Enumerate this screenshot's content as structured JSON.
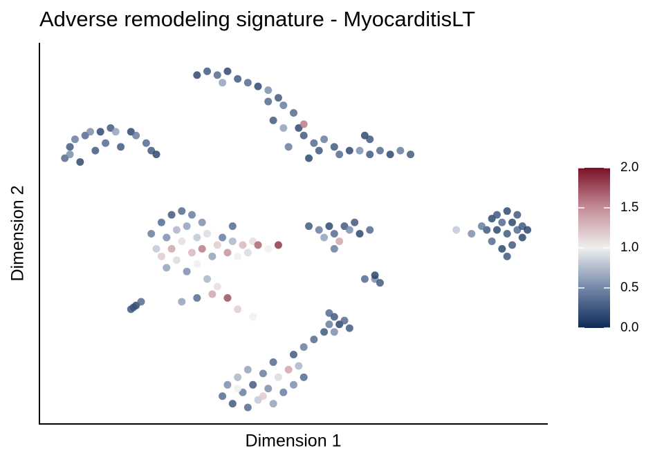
{
  "chart_data": {
    "type": "scatter",
    "title": "Adverse remodeling signature - MyocarditisLT",
    "x_label": "Dimension 1",
    "y_label": "Dimension 2",
    "xlim": [
      0,
      100
    ],
    "ylim": [
      0,
      100
    ],
    "clim": [
      0,
      2
    ],
    "colormap": [
      "#0d2a57",
      "#7488a8",
      "#efefef",
      "#c48d98",
      "#7b1126"
    ],
    "cticks": [
      {
        "value": 0,
        "label": "0.0"
      },
      {
        "value": 0.5,
        "label": "0.5"
      },
      {
        "value": 1,
        "label": "1.0"
      },
      {
        "value": 1.5,
        "label": "1.5"
      },
      {
        "value": 2,
        "label": "2.0"
      }
    ],
    "x": [
      5,
      6,
      7,
      8,
      9,
      10,
      11,
      12,
      13,
      14,
      15,
      16,
      18,
      19,
      21,
      22,
      23,
      6,
      31,
      33,
      35,
      37,
      36,
      39,
      41,
      43,
      45,
      47,
      48,
      45,
      46,
      48,
      50,
      51,
      52,
      49,
      52,
      54,
      55,
      53,
      56,
      58,
      59,
      61,
      63,
      65,
      67,
      69,
      71,
      73,
      64,
      65,
      22,
      23,
      24,
      24,
      25,
      25,
      26,
      26,
      27,
      27,
      28,
      28,
      29,
      29,
      30,
      30,
      31,
      31,
      32,
      32,
      33,
      33,
      34,
      35,
      35,
      36,
      37,
      37,
      38,
      39,
      40,
      41,
      42,
      43,
      45,
      47,
      38,
      34,
      39,
      42,
      28,
      31,
      53,
      55,
      57,
      58,
      60,
      61,
      63,
      65,
      56,
      59,
      62,
      58,
      88,
      89,
      89,
      90,
      90,
      91,
      91,
      92,
      92,
      93,
      93,
      94,
      94,
      95,
      95,
      96,
      92,
      87,
      85,
      82,
      64,
      66,
      67,
      66,
      18,
      19,
      20,
      18.5,
      36,
      37,
      38,
      39,
      40,
      41,
      41,
      42,
      43,
      44,
      45,
      46,
      46,
      47,
      48,
      49,
      50,
      51,
      52,
      50,
      52,
      54,
      56,
      57,
      58,
      59,
      60,
      61,
      58,
      57,
      44,
      39
    ],
    "y": [
      70,
      73,
      75,
      69,
      76,
      77,
      72,
      77,
      74,
      78,
      77,
      73,
      77,
      76,
      74,
      72,
      71,
      71,
      92,
      93,
      92,
      93,
      90,
      91,
      90,
      89,
      88,
      86,
      84,
      85,
      80,
      78,
      82,
      78,
      76,
      73,
      79,
      74,
      72,
      70,
      75,
      73,
      71,
      72,
      72,
      71,
      72,
      71,
      72,
      71,
      76,
      75,
      50,
      46,
      53,
      44,
      49,
      41,
      55,
      46,
      51,
      43,
      56,
      48,
      40,
      52,
      45,
      55,
      49,
      42,
      53,
      46,
      38,
      50,
      44,
      47,
      36,
      49,
      45,
      33,
      48,
      44,
      47,
      45,
      48,
      47,
      46,
      47,
      52,
      34,
      30,
      28,
      32,
      33,
      52,
      51,
      52,
      50,
      52,
      51,
      50,
      51,
      49,
      48,
      53,
      46,
      51,
      54,
      48,
      51,
      55,
      46,
      53,
      50,
      56,
      47,
      53,
      51,
      55,
      49,
      52,
      51,
      44,
      52,
      50,
      51,
      38,
      38,
      37,
      39,
      30,
      31,
      32,
      30.5,
      7,
      10,
      5,
      12,
      8,
      4,
      14,
      10,
      6,
      13,
      9,
      16,
      5,
      12,
      8,
      14,
      10,
      15,
      12,
      18,
      20,
      22,
      24,
      26,
      28,
      26,
      27,
      25,
      24,
      29,
      7,
      9
    ],
    "values": [
      0.3,
      0.2,
      0.4,
      0.1,
      0.3,
      0.5,
      0.2,
      0.1,
      0.3,
      0.2,
      0.6,
      0.2,
      0.1,
      0.4,
      0.3,
      0.2,
      0.1,
      0.5,
      0.1,
      0.2,
      0.3,
      0.1,
      0.6,
      0.2,
      0.3,
      0.1,
      0.5,
      0.2,
      0.4,
      0.3,
      0.2,
      0.6,
      0.3,
      0.1,
      0.2,
      0.4,
      1.6,
      0.3,
      0.2,
      0.1,
      0.4,
      0.2,
      0.3,
      0.1,
      0.5,
      0.2,
      0.3,
      0.1,
      0.4,
      0.2,
      0.1,
      0.2,
      0.4,
      0.8,
      0.3,
      1.2,
      0.5,
      0.6,
      0.2,
      1.4,
      0.7,
      0.9,
      0.3,
      1.1,
      0.5,
      0.6,
      1.3,
      0.4,
      0.8,
      1.0,
      0.5,
      1.6,
      0.7,
      0.9,
      0.6,
      1.2,
      1.1,
      0.4,
      1.5,
      1.8,
      0.7,
      1.0,
      1.3,
      0.9,
      1.1,
      1.7,
      1.0,
      1.9,
      0.3,
      1.4,
      1.2,
      1.0,
      0.6,
      0.3,
      0.2,
      0.4,
      0.1,
      0.3,
      0.2,
      0.5,
      0.1,
      0.3,
      0.6,
      1.4,
      0.2,
      0.4,
      0.2,
      0.1,
      0.3,
      0.1,
      0.2,
      0.1,
      0.3,
      0.2,
      0.1,
      0.2,
      0.1,
      0.3,
      0.2,
      0.1,
      0.2,
      0.1,
      0.2,
      0.4,
      0.5,
      0.8,
      0.3,
      0.5,
      0.2,
      0.1,
      0.2,
      0.1,
      0.3,
      0.2,
      0.3,
      0.5,
      0.2,
      0.7,
      0.4,
      0.3,
      0.6,
      0.2,
      0.8,
      0.4,
      0.5,
      0.3,
      0.6,
      0.9,
      0.4,
      1.4,
      0.5,
      0.7,
      0.3,
      0.2,
      0.4,
      0.3,
      0.2,
      0.4,
      0.2,
      0.1,
      0.3,
      0.2,
      0.5,
      0.3,
      1.2,
      1.0
    ]
  }
}
